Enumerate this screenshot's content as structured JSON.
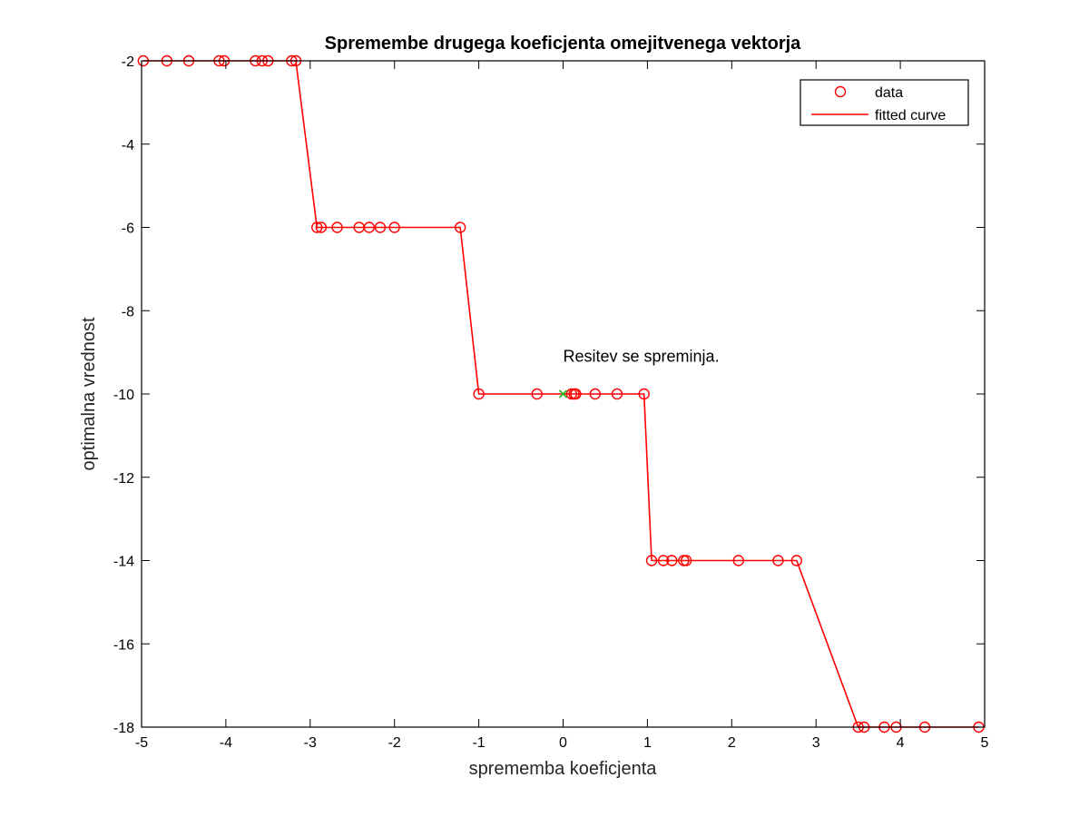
{
  "chart_data": {
    "type": "line",
    "title": "Spremembe drugega koeficjenta omejitvenega vektorja",
    "xlabel": "sprememba koeficjenta",
    "ylabel": "optimalna vrednost",
    "xlim": [
      -5,
      5
    ],
    "ylim": [
      -18,
      -2
    ],
    "xticks": [
      -5,
      -4,
      -3,
      -2,
      -1,
      0,
      1,
      2,
      3,
      4,
      5
    ],
    "yticks": [
      -18,
      -16,
      -14,
      -12,
      -10,
      -8,
      -6,
      -4,
      -2
    ],
    "grid": false,
    "legend": {
      "placement": "top-right",
      "entries": [
        "data",
        "fitted curve"
      ]
    },
    "annotations": [
      {
        "text": "Resitev se spreminja.",
        "x": 0,
        "y": -9.1
      }
    ],
    "marker_point": {
      "x": 0,
      "y": -10,
      "color": "#22bb22"
    },
    "colors": {
      "series": "#ff0000"
    },
    "series": [
      {
        "name": "data",
        "style": "markers",
        "x": [
          -4.98,
          -4.7,
          -4.44,
          -4.08,
          -4.02,
          -3.65,
          -3.57,
          -3.5,
          -3.22,
          -3.17,
          -2.92,
          -2.87,
          -2.68,
          -2.42,
          -2.3,
          -2.17,
          -2.0,
          -1.22,
          -1.0,
          -0.31,
          0.1,
          0.13,
          0.15,
          0.38,
          0.64,
          0.96,
          1.05,
          1.19,
          1.29,
          1.43,
          1.46,
          2.08,
          2.55,
          2.77,
          3.5,
          3.57,
          3.81,
          3.95,
          4.29,
          4.93
        ],
        "y": [
          -2,
          -2,
          -2,
          -2,
          -2,
          -2,
          -2,
          -2,
          -2,
          -2,
          -6,
          -6,
          -6,
          -6,
          -6,
          -6,
          -6,
          -6,
          -10,
          -10,
          -10,
          -10,
          -10,
          -10,
          -10,
          -10,
          -14,
          -14,
          -14,
          -14,
          -14,
          -14,
          -14,
          -14,
          -18,
          -18,
          -18,
          -18,
          -18,
          -18
        ]
      },
      {
        "name": "fitted curve",
        "style": "line",
        "x": [
          -4.98,
          -3.17,
          -2.92,
          -1.22,
          -1.0,
          0.96,
          1.05,
          2.77,
          3.5,
          4.93
        ],
        "y": [
          -2,
          -2,
          -6,
          -6,
          -10,
          -10,
          -14,
          -14,
          -18,
          -18
        ]
      }
    ]
  }
}
